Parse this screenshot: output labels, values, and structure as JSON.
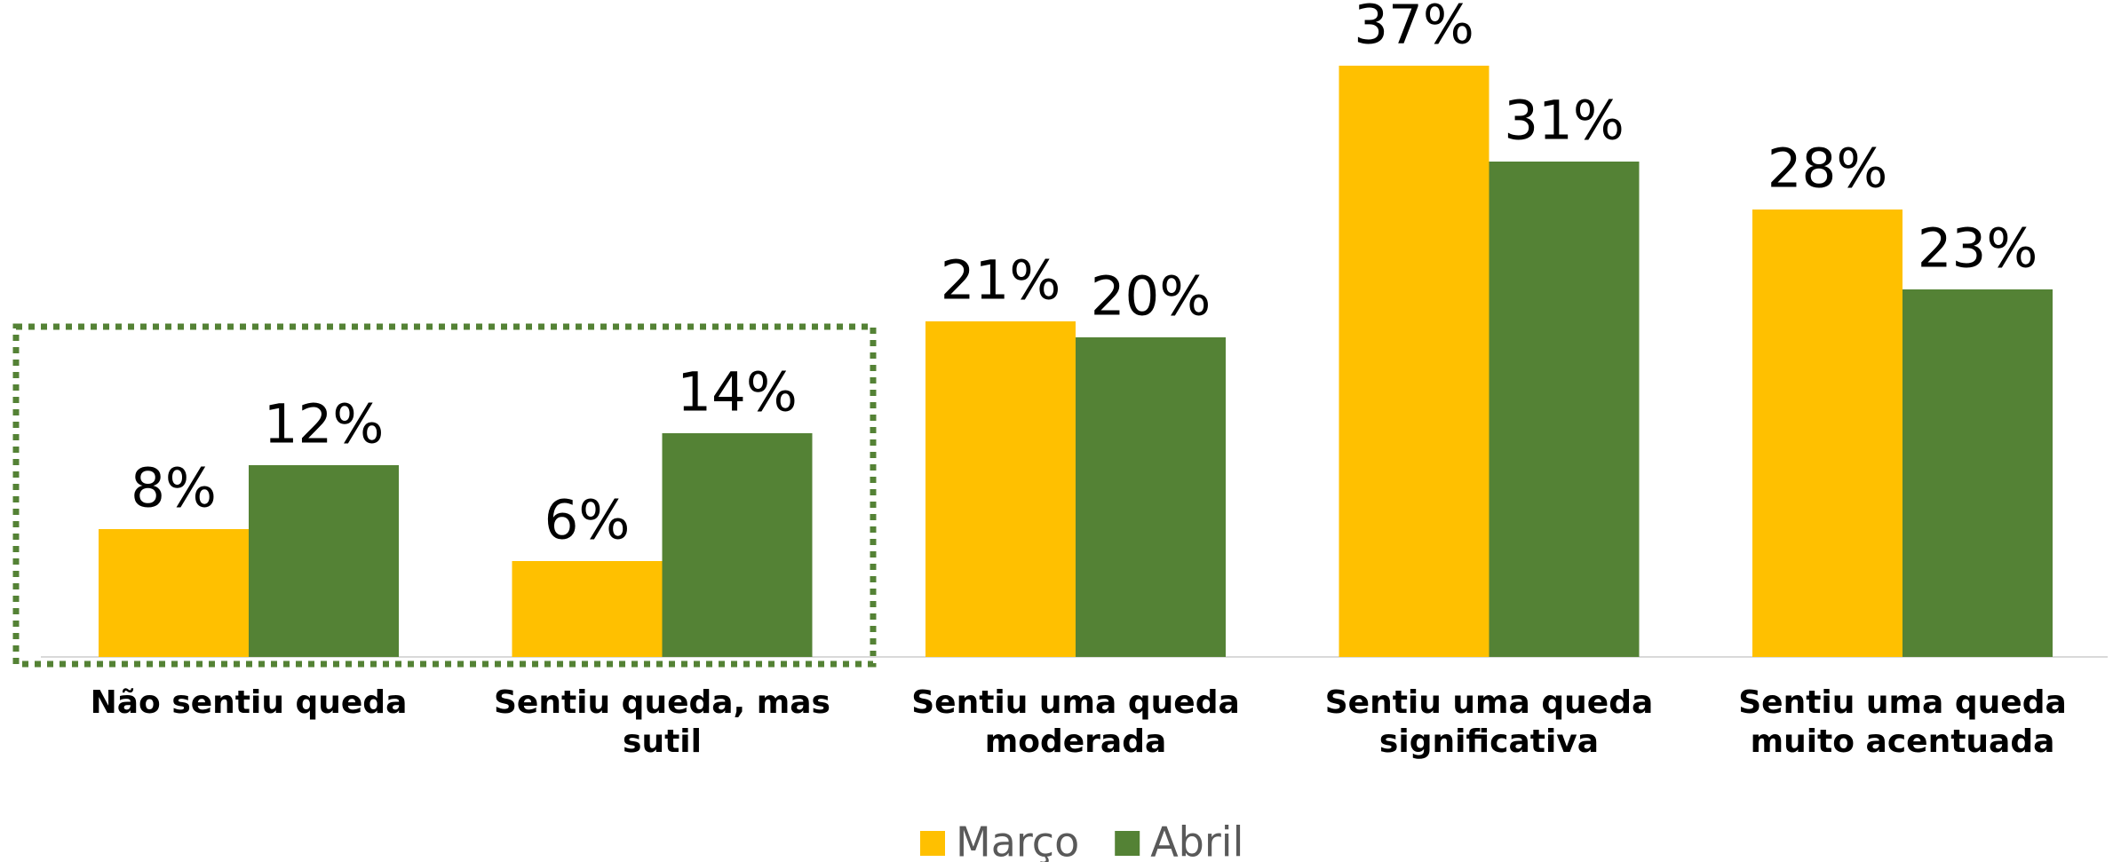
{
  "chart_data": {
    "type": "bar",
    "categories": [
      "Não sentiu queda",
      "Sentiu queda, mas sutil",
      "Sentiu uma queda moderada",
      "Sentiu uma queda significativa",
      "Sentiu uma queda muito acentuada"
    ],
    "series": [
      {
        "name": "Março",
        "color": "#FFC000",
        "values": [
          8,
          6,
          21,
          37,
          28
        ],
        "value_labels": [
          "8%",
          "6%",
          "21%",
          "37%",
          "28%"
        ]
      },
      {
        "name": "Abril",
        "color": "#548235",
        "values": [
          12,
          14,
          20,
          31,
          23
        ],
        "value_labels": [
          "12%",
          "14%",
          "20%",
          "31%",
          "23%"
        ]
      }
    ],
    "legend": "bottom"
  }
}
